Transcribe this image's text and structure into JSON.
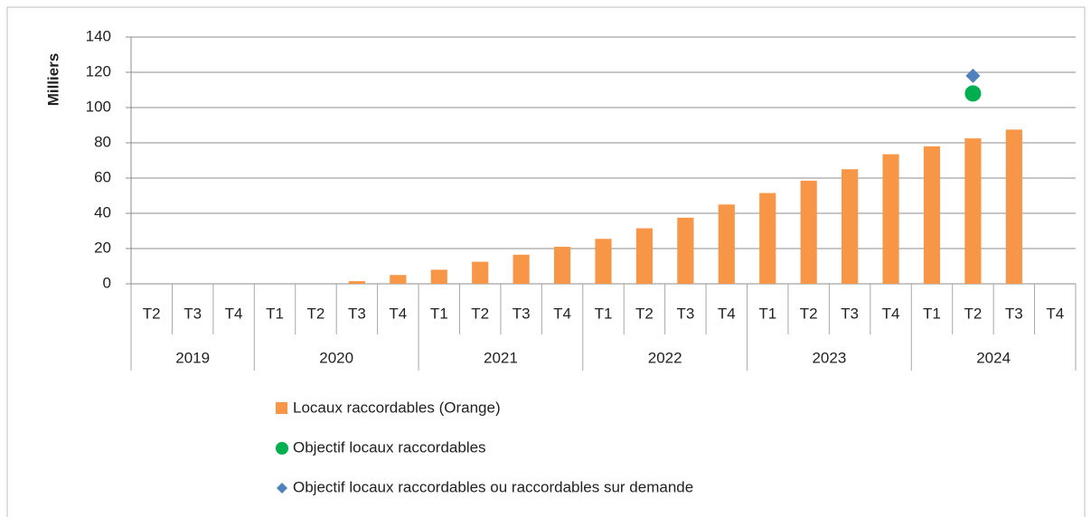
{
  "chart_data": {
    "type": "bar",
    "y_axis_label": "Milliers",
    "groups": [
      {
        "name": "2019",
        "categories": [
          "T2",
          "T3",
          "T4"
        ]
      },
      {
        "name": "2020",
        "categories": [
          "T1",
          "T2",
          "T3",
          "T4"
        ]
      },
      {
        "name": "2021",
        "categories": [
          "T1",
          "T2",
          "T3",
          "T4"
        ]
      },
      {
        "name": "2022",
        "categories": [
          "T1",
          "T2",
          "T3",
          "T4"
        ]
      },
      {
        "name": "2023",
        "categories": [
          "T1",
          "T2",
          "T3",
          "T4"
        ]
      },
      {
        "name": "2024",
        "categories": [
          "T1",
          "T2",
          "T3",
          "T4"
        ]
      }
    ],
    "series": [
      {
        "name": "Locaux raccordables (Orange)",
        "type": "bar",
        "color": "#f79646",
        "values": [
          null,
          null,
          null,
          null,
          null,
          1.5,
          5,
          8,
          12.5,
          16.5,
          21,
          25.5,
          31.5,
          37.5,
          45,
          51.5,
          58.5,
          65,
          73.5,
          78,
          82.5,
          87.5,
          null
        ]
      },
      {
        "name": "Objectif locaux raccordables",
        "type": "circle",
        "color": "#00b050",
        "values": [
          null,
          null,
          null,
          null,
          null,
          null,
          null,
          null,
          null,
          null,
          null,
          null,
          null,
          null,
          null,
          null,
          null,
          null,
          null,
          null,
          108,
          null,
          null
        ]
      },
      {
        "name": "Objectif locaux raccordables ou raccordables sur demande",
        "type": "diamond",
        "color": "#4f81bd",
        "values": [
          null,
          null,
          null,
          null,
          null,
          null,
          null,
          null,
          null,
          null,
          null,
          null,
          null,
          null,
          null,
          null,
          null,
          null,
          null,
          null,
          118,
          null,
          null
        ]
      }
    ],
    "ylim": [
      0,
      140
    ],
    "yticks": [
      0,
      20,
      40,
      60,
      80,
      100,
      120,
      140
    ],
    "grid": true
  }
}
